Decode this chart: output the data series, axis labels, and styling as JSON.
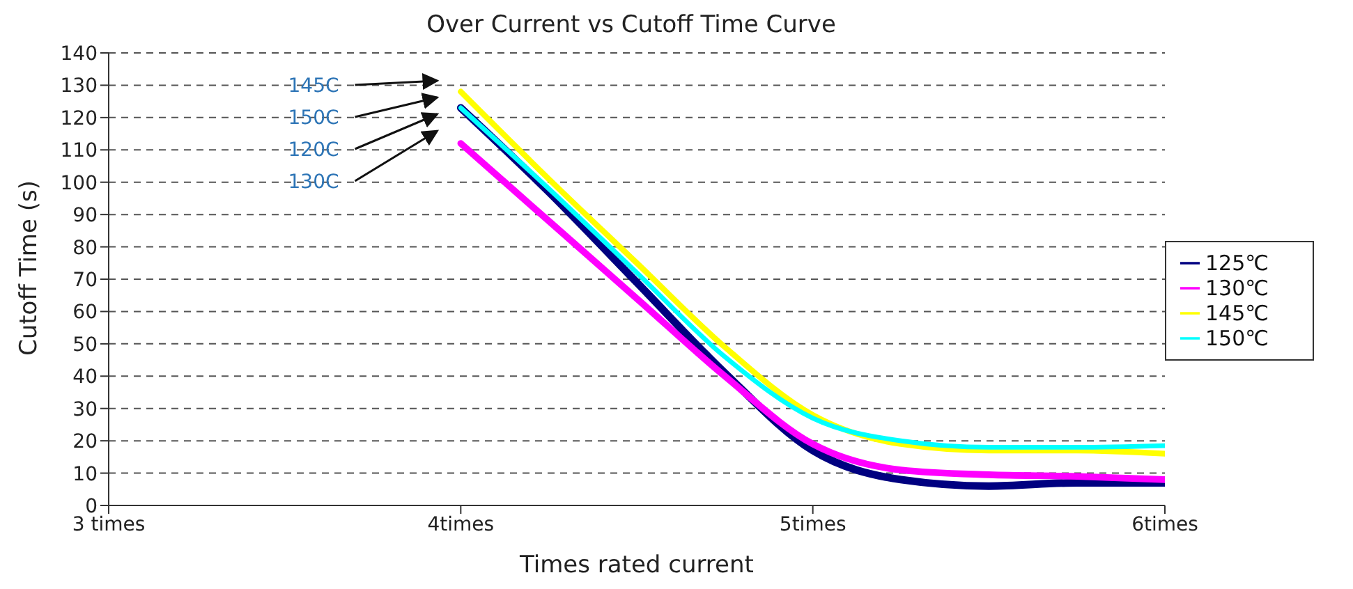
{
  "chart_data": {
    "type": "line",
    "title": "Over Current vs Cutoff Time Curve",
    "xlabel": "Times rated current",
    "ylabel": "Cutoff Time (s)",
    "x": [
      4,
      4.25,
      4.5,
      4.75,
      5,
      5.25,
      5.5,
      5.75,
      6
    ],
    "series": [
      {
        "name": "125℃",
        "color": "#000080",
        "values": [
          123,
          97,
          69,
          41,
          17,
          8,
          6,
          7,
          7
        ]
      },
      {
        "name": "130℃",
        "color": "#ff00ff",
        "values": [
          112,
          88,
          64,
          40,
          19,
          11,
          9.5,
          9,
          8
        ]
      },
      {
        "name": "145℃",
        "color": "#ffff00",
        "values": [
          128,
          101,
          75,
          49,
          28,
          19,
          17,
          17,
          16
        ]
      },
      {
        "name": "150℃",
        "color": "#00ffff",
        "values": [
          123,
          98,
          72,
          46,
          27,
          20,
          18,
          18,
          18.5
        ]
      }
    ],
    "xlim": [
      3,
      6
    ],
    "xticks": [
      {
        "value": 3,
        "label": "3 times"
      },
      {
        "value": 4,
        "label": "4times"
      },
      {
        "value": 5,
        "label": "5times"
      },
      {
        "value": 6,
        "label": "6times"
      }
    ],
    "ylim": [
      0,
      140
    ],
    "yticks": [
      0,
      10,
      20,
      30,
      40,
      50,
      60,
      70,
      80,
      90,
      100,
      110,
      120,
      130,
      140
    ],
    "grid": "y",
    "legend": "right",
    "marker": "none",
    "line_style": "solid",
    "annotations": [
      "145C",
      "150C",
      "120C",
      "130C"
    ]
  }
}
